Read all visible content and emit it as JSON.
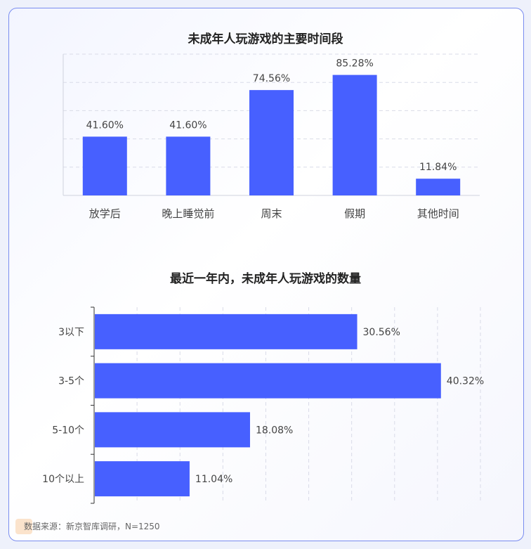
{
  "source": "数据来源：新京智库调研，N=1250",
  "colors": {
    "bar": "#4760ff",
    "grid": "#d9dbe8",
    "axis": "#cfd2dd"
  },
  "chart_data": [
    {
      "type": "bar",
      "title": "未成年人玩游戏的主要时间段",
      "categories": [
        "放学后",
        "晚上睡觉前",
        "周末",
        "假期",
        "其他时间"
      ],
      "values": [
        41.6,
        41.6,
        74.56,
        85.28,
        11.84
      ],
      "labels": [
        "41.60%",
        "41.60%",
        "74.56%",
        "85.28%",
        "11.84%"
      ],
      "ylim": [
        0,
        100
      ],
      "grid": true
    },
    {
      "type": "bar",
      "orientation": "horizontal",
      "title": "最近一年内，未成年人玩游戏的数量",
      "categories": [
        "3以下",
        "3-5个",
        "5-10个",
        "10个以上"
      ],
      "values": [
        30.56,
        40.32,
        18.08,
        11.04
      ],
      "labels": [
        "30.56%",
        "40.32%",
        "18.08%",
        "11.04%"
      ],
      "xlim": [
        0,
        45
      ],
      "grid": true
    }
  ]
}
